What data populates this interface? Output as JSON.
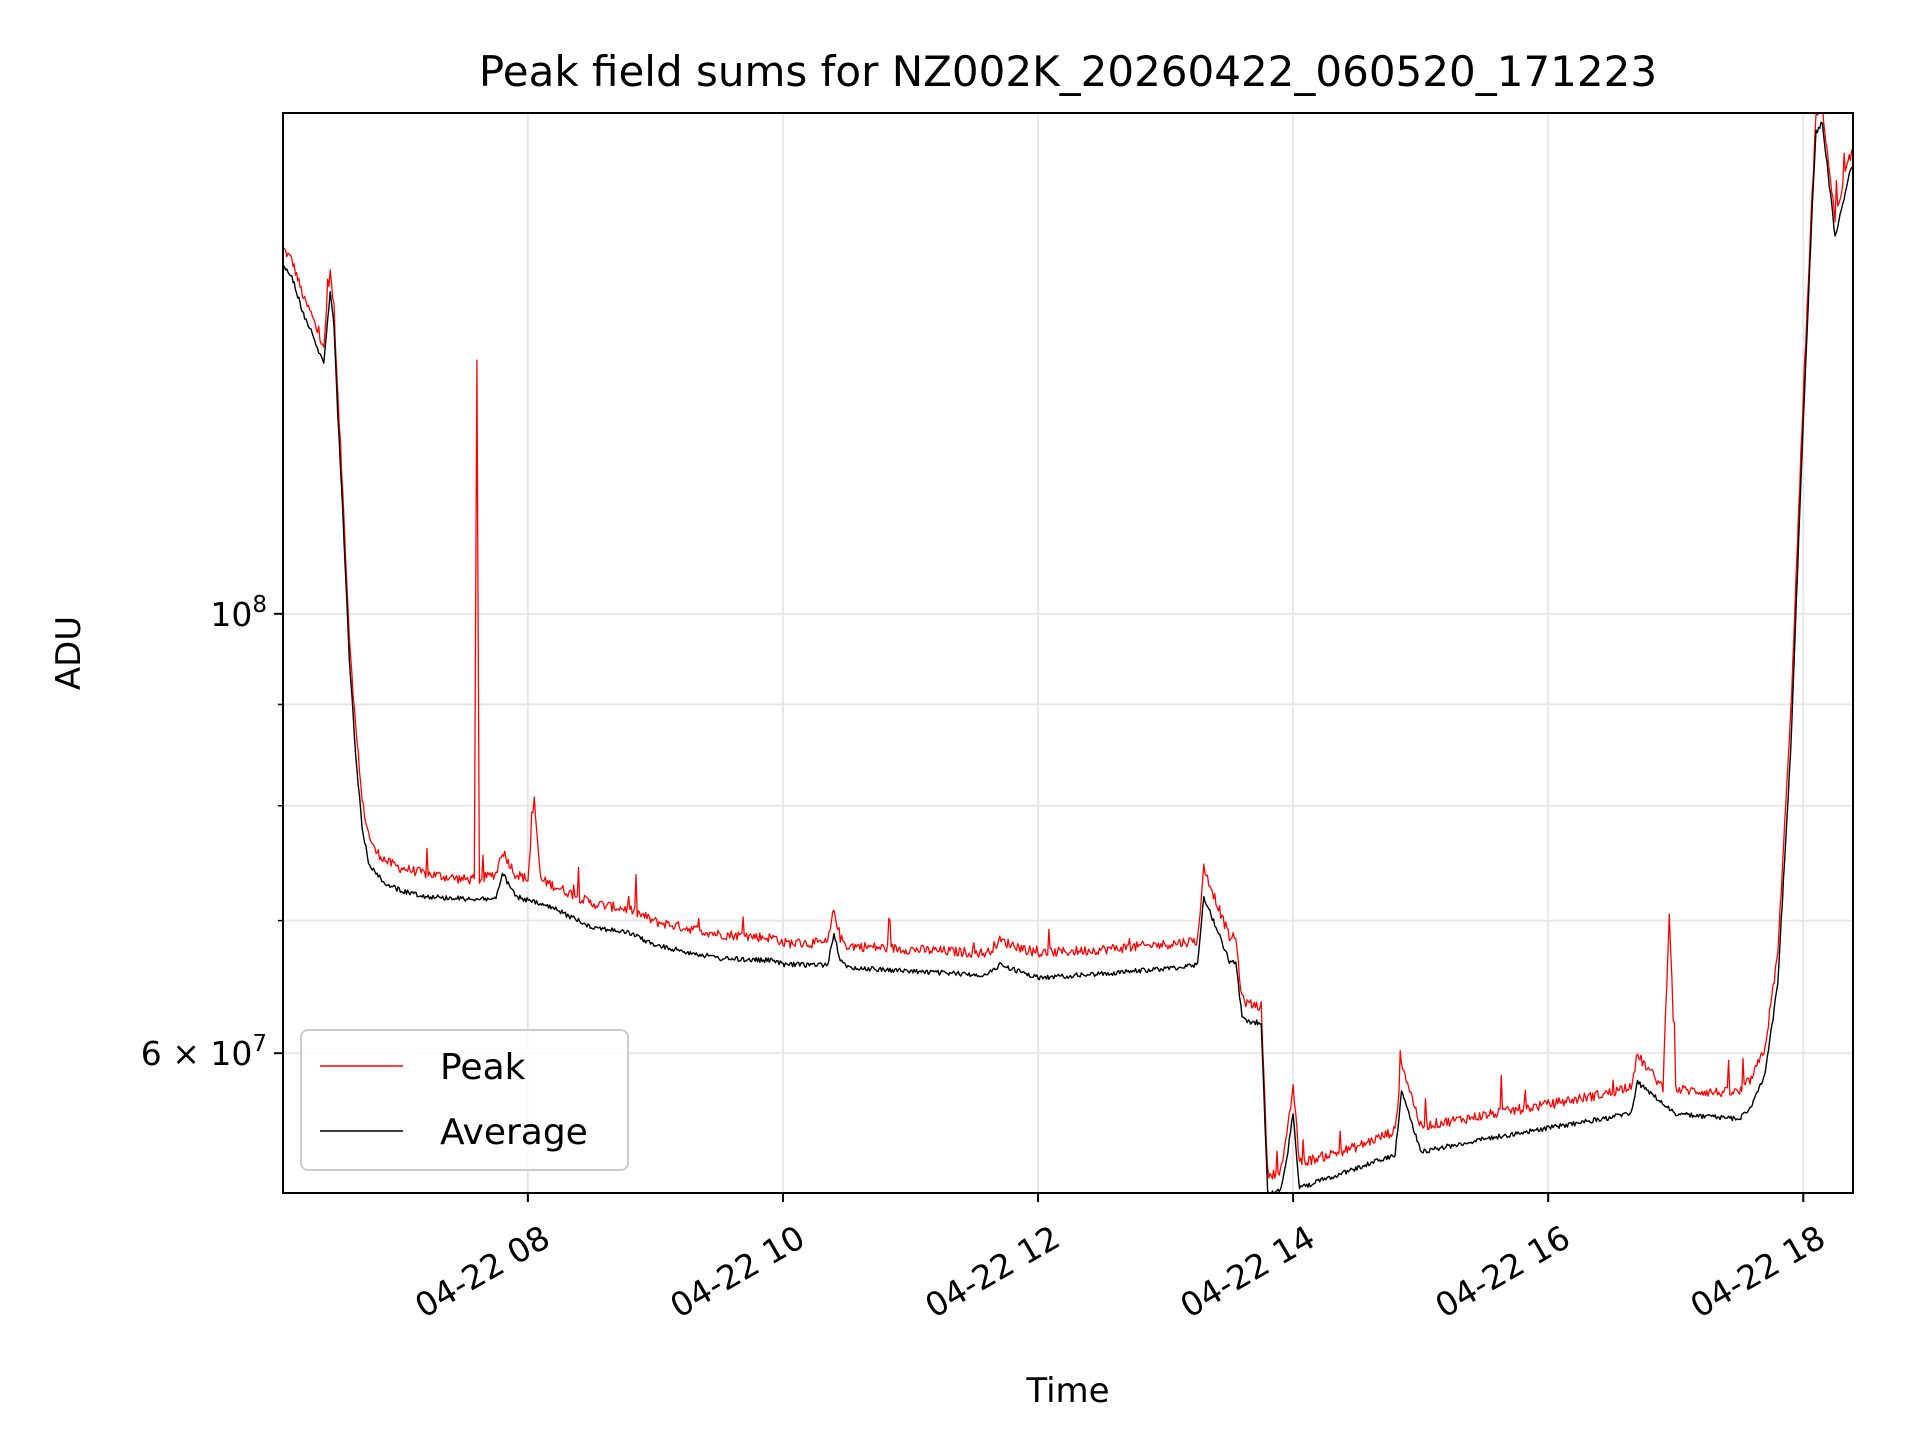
{
  "chart_data": {
    "type": "line",
    "title": "Peak field sums for NZ002K_20260422_060520_171223",
    "xlabel": "Time",
    "ylabel": "ADU",
    "y_scale": "log",
    "xlim_hours": [
      6.08,
      18.39
    ],
    "ylim": [
      51000000,
      179000000
    ],
    "x_ticks": [
      {
        "hour": 8,
        "label": "04-22 08"
      },
      {
        "hour": 10,
        "label": "04-22 10"
      },
      {
        "hour": 12,
        "label": "04-22 12"
      },
      {
        "hour": 14,
        "label": "04-22 14"
      },
      {
        "hour": 16,
        "label": "04-22 16"
      },
      {
        "hour": 18,
        "label": "04-22 18"
      }
    ],
    "y_major_ticks": [
      {
        "value": 100000000,
        "mantissa": "",
        "base": "10",
        "exp": "8"
      }
    ],
    "y_labeled_minor_ticks": [
      {
        "value": 60000000,
        "mantissa": "6 × ",
        "base": "10",
        "exp": "7"
      }
    ],
    "y_minor_ticks": [
      70000000,
      80000000,
      90000000
    ],
    "grid": true,
    "legend": {
      "position": "lower-left",
      "entries": [
        {
          "label": "Peak",
          "color": "#ff0000"
        },
        {
          "label": "Average",
          "color": "#000000"
        }
      ]
    },
    "series": [
      {
        "name": "Average",
        "color": "#000000",
        "x_hours": [
          6.08,
          6.15,
          6.25,
          6.3,
          6.35,
          6.4,
          6.45,
          6.48,
          6.5,
          6.55,
          6.6,
          6.65,
          6.7,
          6.75,
          6.8,
          6.9,
          7.0,
          7.2,
          7.5,
          7.75,
          7.8,
          7.9,
          8.2,
          8.5,
          8.8,
          9.0,
          9.5,
          9.95,
          10.0,
          10.35,
          10.4,
          10.45,
          10.5,
          11.0,
          11.6,
          11.7,
          12.0,
          12.5,
          13.0,
          13.25,
          13.3,
          13.5,
          13.55,
          13.6,
          13.65,
          13.75,
          13.8,
          13.82,
          13.9,
          13.95,
          14.0,
          14.05,
          14.5,
          14.8,
          14.85,
          15.0,
          15.5,
          16.0,
          16.5,
          16.65,
          16.7,
          17.0,
          17.3,
          17.5,
          17.6,
          17.7,
          17.8,
          17.9,
          18.0,
          18.07,
          18.1,
          18.15,
          18.25,
          18.3,
          18.36,
          18.39
        ],
        "y": [
          150000000,
          148000000,
          141000000,
          139000000,
          136000000,
          134000000,
          145000000,
          140000000,
          130000000,
          112000000,
          95000000,
          85000000,
          78000000,
          75000000,
          74000000,
          73000000,
          72500000,
          72000000,
          71800000,
          71800000,
          74000000,
          72000000,
          71000000,
          69500000,
          69000000,
          68000000,
          67000000,
          66800000,
          66500000,
          66500000,
          69000000,
          66800000,
          66300000,
          66000000,
          65700000,
          66500000,
          65500000,
          65800000,
          66200000,
          66500000,
          72000000,
          66800000,
          66700000,
          62500000,
          62200000,
          62200000,
          51200000,
          51000000,
          51100000,
          53000000,
          56000000,
          51300000,
          52500000,
          53300000,
          57500000,
          53500000,
          54300000,
          55000000,
          55700000,
          56000000,
          58000000,
          55900000,
          55700000,
          55600000,
          56500000,
          58500000,
          65000000,
          85000000,
          125000000,
          160000000,
          175000000,
          177000000,
          155000000,
          160000000,
          167000000,
          168000000
        ]
      },
      {
        "name": "Peak",
        "color": "#ff0000",
        "x_hours": [
          6.08,
          6.15,
          6.25,
          6.3,
          6.35,
          6.4,
          6.45,
          6.48,
          6.5,
          6.55,
          6.6,
          6.65,
          6.7,
          6.75,
          6.8,
          6.9,
          7.0,
          7.2,
          7.5,
          7.58,
          7.6,
          7.62,
          7.75,
          7.8,
          7.9,
          8.0,
          8.05,
          8.1,
          8.2,
          8.5,
          8.8,
          9.0,
          9.5,
          9.95,
          10.0,
          10.35,
          10.4,
          10.45,
          10.5,
          11.0,
          11.6,
          11.7,
          12.0,
          12.5,
          13.0,
          13.25,
          13.3,
          13.5,
          13.55,
          13.6,
          13.65,
          13.75,
          13.8,
          13.82,
          13.9,
          13.95,
          14.0,
          14.05,
          14.5,
          14.8,
          14.85,
          15.0,
          15.5,
          16.0,
          16.5,
          16.65,
          16.7,
          16.9,
          16.95,
          17.0,
          17.3,
          17.5,
          17.6,
          17.7,
          17.8,
          17.9,
          18.0,
          18.07,
          18.1,
          18.15,
          18.25,
          18.3,
          18.36,
          18.39
        ],
        "y": [
          152000000,
          150000000,
          143000000,
          141000000,
          138000000,
          136000000,
          148000000,
          142000000,
          132000000,
          114000000,
          97000000,
          87000000,
          80000000,
          77000000,
          75500000,
          74500000,
          74000000,
          73500000,
          73000000,
          73000000,
          133000000,
          73000000,
          73500000,
          75500000,
          73500000,
          73000000,
          80000000,
          73000000,
          72500000,
          71000000,
          70500000,
          69500000,
          68500000,
          68200000,
          67800000,
          67800000,
          70500000,
          68200000,
          67600000,
          67300000,
          67000000,
          68000000,
          67000000,
          67300000,
          67700000,
          68000000,
          74000000,
          68300000,
          68200000,
          63500000,
          63200000,
          63000000,
          52000000,
          51800000,
          52000000,
          54000000,
          57500000,
          52500000,
          53500000,
          54500000,
          59000000,
          54800000,
          55500000,
          56200000,
          57000000,
          57500000,
          59500000,
          57300000,
          70500000,
          57200000,
          57000000,
          57000000,
          58000000,
          60000000,
          67000000,
          88000000,
          128000000,
          162000000,
          177000000,
          179000000,
          157000000,
          162000000,
          169000000,
          170000000
        ]
      }
    ]
  }
}
